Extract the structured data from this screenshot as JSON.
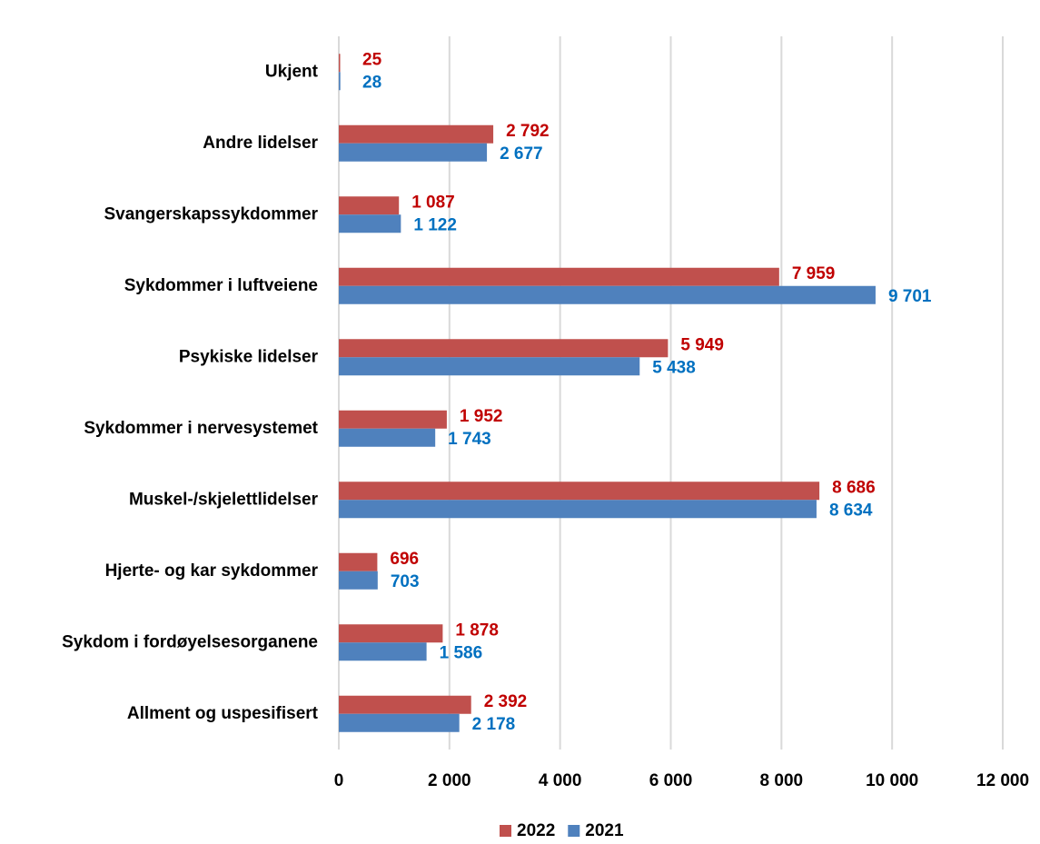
{
  "chart_data": {
    "type": "bar",
    "orientation": "horizontal",
    "categories": [
      "Ukjent",
      "Andre lidelser",
      "Svangerskapssykdommer",
      "Sykdommer i luftveiene",
      "Psykiske lidelser",
      "Sykdommer i nervesystemet",
      "Muskel-/skjelettlidelser",
      "Hjerte- og kar sykdommer",
      "Sykdom i fordøyelsesorganene",
      "Allment og uspesifisert"
    ],
    "series": [
      {
        "name": "2022",
        "color": "#c0504d",
        "label_color": "#c00000",
        "values": [
          25,
          2792,
          1087,
          7959,
          5949,
          1952,
          8686,
          696,
          1878,
          2392
        ],
        "value_labels": [
          "25",
          "2 792",
          "1 087",
          "7 959",
          "5 949",
          "1 952",
          "8 686",
          "696",
          "1 878",
          "2 392"
        ]
      },
      {
        "name": "2021",
        "color": "#4f81bd",
        "label_color": "#0070c0",
        "values": [
          28,
          2677,
          1122,
          9701,
          5438,
          1743,
          8634,
          703,
          1586,
          2178
        ],
        "value_labels": [
          "28",
          "2 677",
          "1 122",
          "9 701",
          "5 438",
          "1 743",
          "8 634",
          "703",
          "1 586",
          "2 178"
        ]
      }
    ],
    "xlim": [
      0,
      12000
    ],
    "xticks": [
      0,
      {
        "value": 2000,
        "label": "2 000"
      },
      {
        "value": 4000,
        "label": "4 000"
      },
      {
        "value": 6000,
        "label": "6 000"
      },
      {
        "value": 8000,
        "label": "8 000"
      },
      {
        "value": 10000,
        "label": "10 000"
      },
      {
        "value": 12000,
        "label": "12 000"
      }
    ],
    "grid": true,
    "legend": "bottom"
  }
}
